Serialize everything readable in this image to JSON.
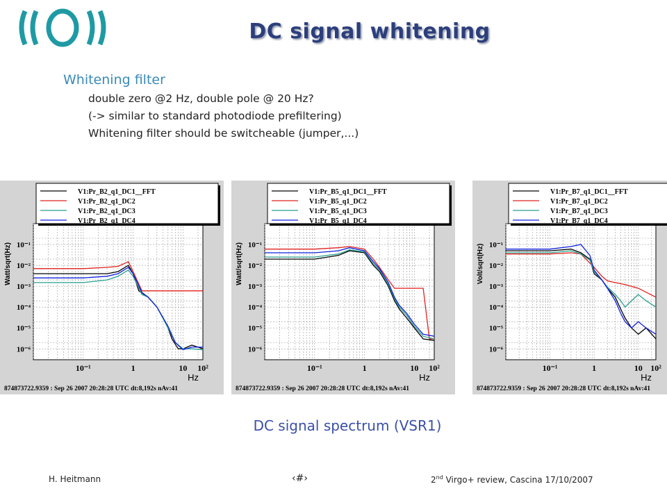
{
  "slide": {
    "title": "DC signal whitening",
    "heading": "Whitening filter",
    "bullets": [
      "double zero @2 Hz, double pole @ 20 Hz?",
      " (-> similar to standard photodiode prefiltering)",
      "Whitening filter should be switcheable (jumper,...)"
    ],
    "caption": "DC signal spectrum (VSR1)",
    "footer": {
      "author": "H. Heitmann",
      "page": "‹#›",
      "event_ord": "2",
      "event_sup": "nd",
      "event_rest": " Virgo+ review, Cascina 17/10/2007"
    }
  },
  "colors": {
    "title": "#2c3f7c",
    "heading": "#3a8ab8",
    "caption": "#3a4fa8",
    "logo": "#1f9aa4",
    "series": [
      "#000000",
      "#e0201c",
      "#28a090",
      "#1020e0"
    ]
  },
  "chart_data": [
    {
      "type": "line",
      "xscale": "log",
      "yscale": "log",
      "xlim": [
        0.01,
        25
      ],
      "ylim": [
        3e-07,
        1
      ],
      "xlabel": "Hz",
      "ylabel": "Watt/sqrt(Hz)",
      "xticks": [
        "10⁻¹",
        "1",
        "10",
        "10²"
      ],
      "yticks": [
        "10⁻¹",
        "10⁻²",
        "10⁻³",
        "10⁻⁴",
        "10⁻⁵",
        "10⁻⁶"
      ],
      "footer": "874873722.9359 : Sep 26 2007 20:28:28 UTC dt:8,192s nAv:41",
      "legend_position": "top-right",
      "series": [
        {
          "name": "V1:Pr_B2_q1_DC1__FFT",
          "x": [
            0.01,
            0.1,
            0.3,
            0.5,
            0.8,
            1,
            1.3,
            2,
            3,
            4,
            5,
            6,
            8,
            10,
            15,
            25
          ],
          "y": [
            0.004,
            0.004,
            0.004,
            0.005,
            0.01,
            0.004,
            0.0006,
            0.0003,
            0.0001,
            3e-05,
            1e-05,
            3e-06,
            1e-06,
            1e-06,
            1.5e-06,
            1e-06
          ]
        },
        {
          "name": "V1:Pr_B2_q1_DC2",
          "x": [
            0.01,
            0.1,
            0.3,
            0.5,
            0.8,
            1,
            1.5,
            25
          ],
          "y": [
            0.007,
            0.007,
            0.008,
            0.009,
            0.015,
            0.005,
            0.0006,
            0.0006
          ]
        },
        {
          "name": "V1:Pr_B2_q1_DC3",
          "x": [
            0.01,
            0.1,
            0.3,
            0.5,
            0.8,
            1,
            1.5,
            2,
            3,
            5,
            7,
            10,
            15,
            25
          ],
          "y": [
            0.0015,
            0.0015,
            0.002,
            0.003,
            0.006,
            0.003,
            0.0004,
            0.0003,
            0.0001,
            1e-05,
            2e-06,
            1e-06,
            1e-06,
            9e-07
          ]
        },
        {
          "name": "V1:Pr_B2_q1_DC4",
          "x": [
            0.01,
            0.1,
            0.3,
            0.5,
            0.8,
            1,
            1.5,
            2,
            3,
            5,
            7,
            10,
            15,
            25
          ],
          "y": [
            0.0025,
            0.0025,
            0.003,
            0.004,
            0.008,
            0.004,
            0.0005,
            0.0003,
            0.0001,
            1.2e-05,
            2e-06,
            9e-07,
            1.2e-06,
            1.2e-06
          ]
        }
      ]
    },
    {
      "type": "line",
      "xscale": "log",
      "yscale": "log",
      "xlim": [
        0.01,
        25
      ],
      "ylim": [
        3e-07,
        1
      ],
      "xlabel": "Hz",
      "ylabel": "Watt/sqrt(Hz)",
      "xticks": [
        "10⁻¹",
        "1",
        "10",
        "10²"
      ],
      "yticks": [
        "10⁻¹",
        "10⁻²",
        "10⁻³",
        "10⁻⁴",
        "10⁻⁵",
        "10⁻⁶"
      ],
      "footer": "874873722.9359 : Sep 26 2007 20:28:28 UTC dt:8,192s nAv:41",
      "legend_position": "top-right",
      "series": [
        {
          "name": "V1:Pr_B5_q1_DC1__FFT",
          "x": [
            0.01,
            0.1,
            0.3,
            0.5,
            1,
            1.5,
            2,
            3,
            4,
            5,
            7,
            10,
            15,
            25
          ],
          "y": [
            0.02,
            0.02,
            0.03,
            0.05,
            0.04,
            0.01,
            0.005,
            0.001,
            0.0002,
            8e-05,
            3e-05,
            1e-05,
            3e-06,
            2.5e-06
          ]
        },
        {
          "name": "V1:Pr_B5_q1_DC2",
          "x": [
            0.01,
            0.1,
            0.3,
            0.5,
            1,
            1.5,
            2,
            3,
            4,
            5,
            10,
            15,
            20,
            25
          ],
          "y": [
            0.06,
            0.06,
            0.07,
            0.08,
            0.06,
            0.02,
            0.008,
            0.002,
            0.0008,
            0.0008,
            0.0008,
            0.0008,
            3e-06,
            3e-06
          ]
        },
        {
          "name": "V1:Pr_B5_q1_DC3",
          "x": [
            0.01,
            0.1,
            0.3,
            0.5,
            1,
            1.5,
            2,
            3,
            4,
            5,
            7,
            10,
            15,
            25
          ],
          "y": [
            0.025,
            0.025,
            0.035,
            0.055,
            0.045,
            0.012,
            0.006,
            0.0012,
            0.00025,
            0.0001,
            4e-05,
            1.2e-05,
            4e-06,
            3e-06
          ]
        },
        {
          "name": "V1:Pr_B5_q1_DC4",
          "x": [
            0.01,
            0.1,
            0.3,
            0.5,
            1,
            1.5,
            2,
            3,
            4,
            5,
            7,
            10,
            15,
            25
          ],
          "y": [
            0.04,
            0.04,
            0.05,
            0.07,
            0.05,
            0.015,
            0.007,
            0.0015,
            0.0003,
            0.00012,
            5e-05,
            1.5e-05,
            5e-06,
            4e-06
          ]
        }
      ]
    },
    {
      "type": "line",
      "xscale": "log",
      "yscale": "log",
      "xlim": [
        0.01,
        25
      ],
      "ylim": [
        3e-07,
        1
      ],
      "xlabel": "Hz",
      "ylabel": "Volt/sqrt(Hz)",
      "xticks": [
        "10⁻¹",
        "1",
        "10",
        "10²"
      ],
      "yticks": [
        "10⁻¹",
        "10⁻²",
        "10⁻³",
        "10⁻⁴",
        "10⁻⁵",
        "10⁻⁶"
      ],
      "footer": "874873722.9359 : Sep 26 2007 20:28:28 UTC dt:8,192s nAv:41",
      "legend_position": "top-right",
      "series": [
        {
          "name": "V1:Pr_B7_q1_DC1__FFT",
          "x": [
            0.01,
            0.1,
            0.3,
            0.5,
            0.8,
            1,
            1.5,
            2,
            3,
            4,
            5,
            7,
            10,
            15,
            25
          ],
          "y": [
            0.05,
            0.05,
            0.06,
            0.04,
            0.02,
            0.004,
            0.002,
            0.0008,
            0.0003,
            8e-05,
            3e-05,
            1e-05,
            5e-06,
            1e-05,
            3e-06
          ]
        },
        {
          "name": "V1:Pr_B7_q1_DC2",
          "x": [
            0.01,
            0.1,
            0.3,
            0.5,
            1,
            1.5,
            2,
            3,
            5,
            10,
            25
          ],
          "y": [
            0.035,
            0.035,
            0.04,
            0.035,
            0.008,
            0.003,
            0.0018,
            0.0015,
            0.0012,
            0.0008,
            0.0003
          ]
        },
        {
          "name": "V1:Pr_B7_q1_DC3",
          "x": [
            0.01,
            0.1,
            0.3,
            0.5,
            0.8,
            1,
            1.5,
            2,
            3,
            4,
            5,
            7,
            10,
            15,
            25
          ],
          "y": [
            0.04,
            0.04,
            0.05,
            0.035,
            0.018,
            0.005,
            0.002,
            0.0009,
            0.0004,
            0.0002,
            0.0001,
            0.0002,
            0.0004,
            0.0002,
            0.0001
          ]
        },
        {
          "name": "V1:Pr_B7_q1_DC4",
          "x": [
            0.01,
            0.1,
            0.3,
            0.5,
            0.8,
            1,
            1.5,
            2,
            3,
            4,
            5,
            7,
            10,
            15,
            25
          ],
          "y": [
            0.06,
            0.06,
            0.08,
            0.1,
            0.03,
            0.006,
            0.002,
            0.0008,
            0.0002,
            5e-05,
            2e-05,
            1e-05,
            2e-05,
            1e-05,
            5e-06
          ]
        }
      ]
    }
  ]
}
